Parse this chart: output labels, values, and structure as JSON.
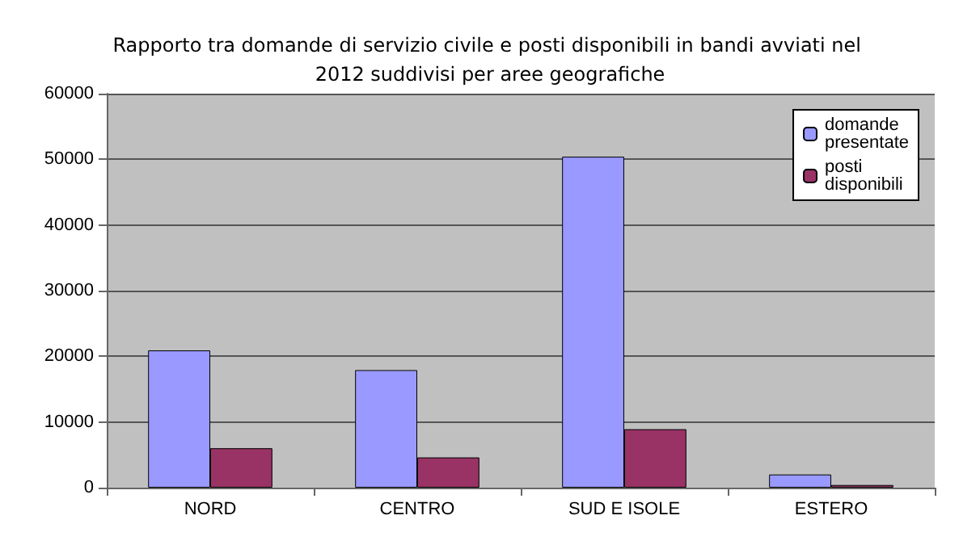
{
  "chart_data": {
    "type": "bar",
    "title": "Rapporto tra domande di servizio civile e posti disponibili in bandi avviati nel 2012 suddivisi per aree geografiche",
    "categories": [
      "NORD",
      "CENTRO",
      "SUD E ISOLE",
      "ESTERO"
    ],
    "series": [
      {
        "name": "domande presentate",
        "color": "#9999ff",
        "values": [
          20900,
          17900,
          50400,
          2000
        ]
      },
      {
        "name": "posti disponibili",
        "color": "#993366",
        "values": [
          6000,
          4600,
          8900,
          400
        ]
      }
    ],
    "ylim": [
      0,
      60000
    ],
    "yticks": [
      0,
      10000,
      20000,
      30000,
      40000,
      50000,
      60000
    ],
    "grid": "y",
    "legend": "top right"
  }
}
